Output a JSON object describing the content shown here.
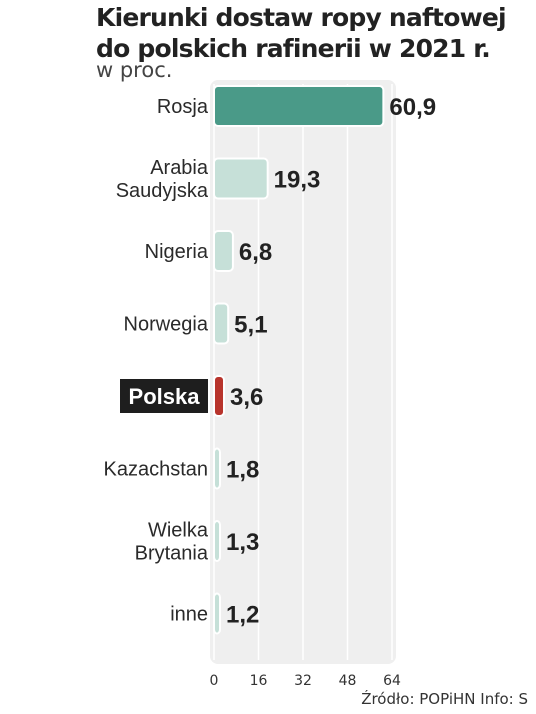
{
  "title_lines": [
    "Kierunki dostaw ropy naftowej",
    "do polskich rafinerii w 2021 r."
  ],
  "subtitle": "w proc.",
  "source": "Źródło: POPiHN  Info: S",
  "chart_data": {
    "type": "bar",
    "orientation": "horizontal",
    "title": "Kierunki dostaw ropy naftowej do polskich rafinerii w 2021 r.",
    "subtitle": "w proc.",
    "categories": [
      [
        "Rosja"
      ],
      [
        "Arabia",
        "Saudyjska"
      ],
      [
        "Nigeria"
      ],
      [
        "Norwegia"
      ],
      [
        "Polska"
      ],
      [
        "Kazachstan"
      ],
      [
        "Wielka",
        "Brytania"
      ],
      [
        "inne"
      ]
    ],
    "values": [
      60.9,
      19.3,
      6.8,
      5.1,
      3.6,
      1.8,
      1.3,
      1.2
    ],
    "value_labels": [
      "60,9",
      "19,3",
      "6,8",
      "5,1",
      "3,6",
      "1,8",
      "1,3",
      "1,2"
    ],
    "highlight_category": "Polska",
    "xlim": [
      0,
      64
    ],
    "x_ticks": [
      "0",
      "16",
      "32",
      "48",
      "64"
    ],
    "grid": true,
    "colors": {
      "top": "#4a9a88",
      "default": "#c6e0d8",
      "highlight": "#b8342c",
      "highlight_label_bg": "#1e1e1e",
      "panel": "#efefef",
      "grid": "#ffffff"
    }
  }
}
